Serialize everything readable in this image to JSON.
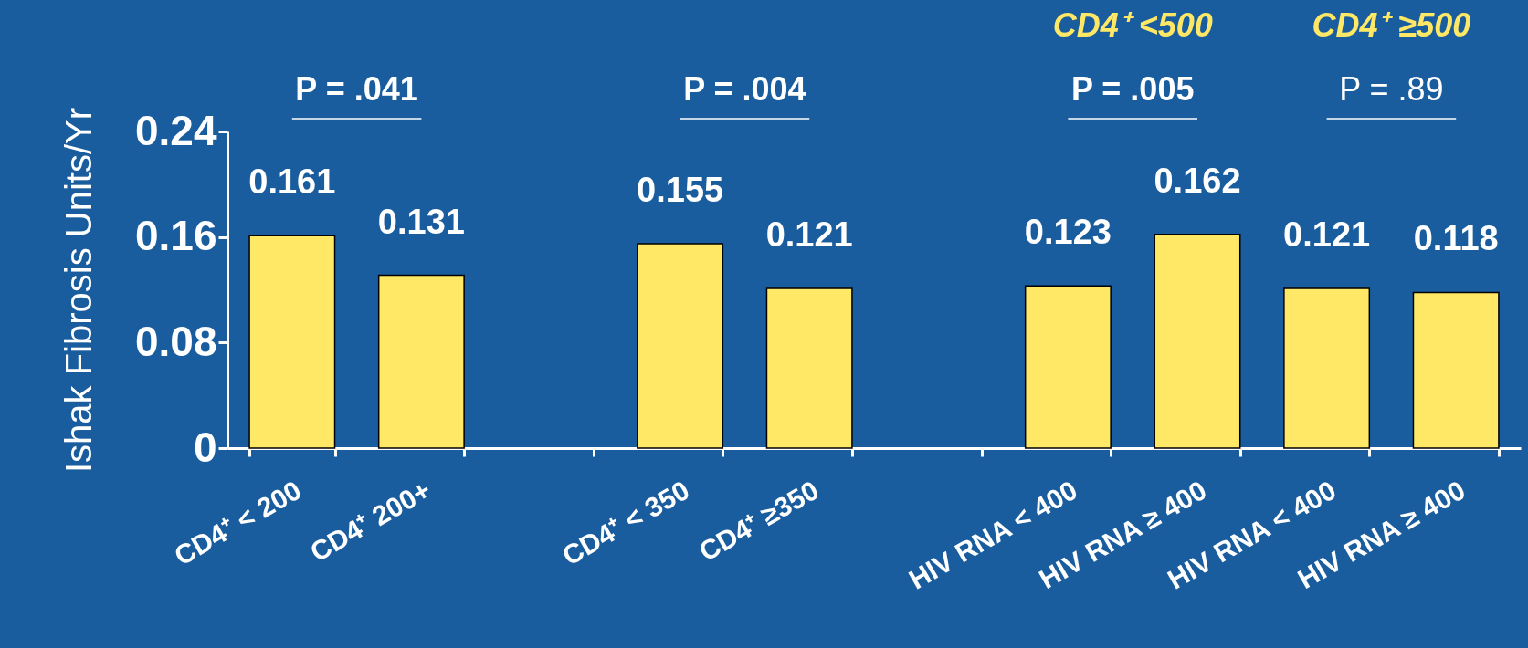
{
  "chart_data": {
    "type": "bar",
    "ylabel": "Ishak Fibrosis Units/Yr",
    "categories": [
      "CD4⁺ < 200",
      "CD4⁺ 200+",
      null,
      "CD4⁺ < 350",
      "CD4⁺ ≥350",
      null,
      "HIV RNA < 400",
      "HIV RNA ≥ 400",
      "HIV RNA < 400",
      "HIV RNA ≥ 400"
    ],
    "values": [
      0.161,
      0.131,
      null,
      0.155,
      0.121,
      null,
      0.123,
      0.162,
      0.121,
      0.118
    ],
    "color": "#ffe866",
    "ylim": [
      0,
      0.24
    ],
    "yticks": [
      0,
      0.08,
      0.16,
      0.24
    ],
    "data_labels": true,
    "annotations": [
      "P = .041",
      "P = .004",
      "P = .005",
      "P = .89",
      "CD4⁺ <500",
      "CD4⁺ ≥500"
    ]
  }
}
